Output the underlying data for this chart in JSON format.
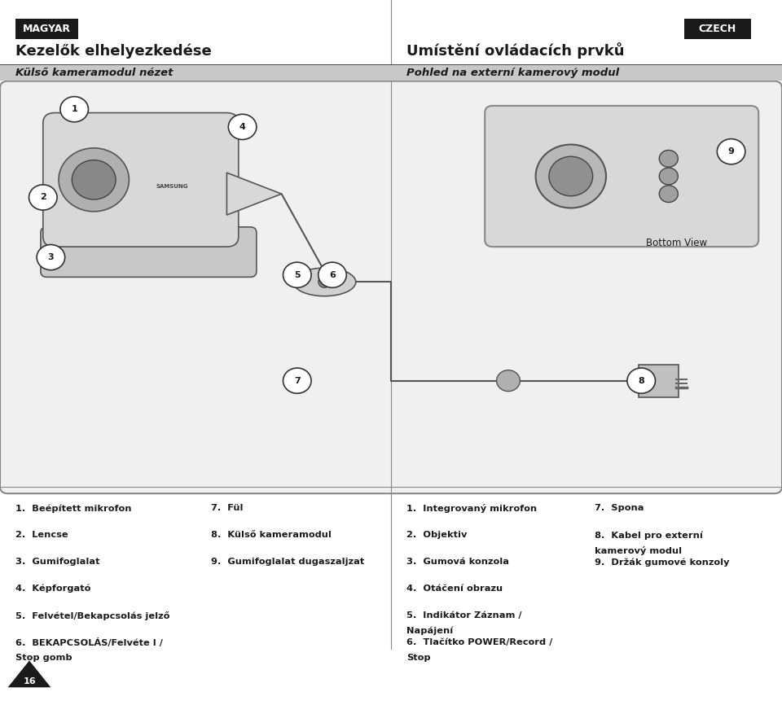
{
  "bg_color": "#ffffff",
  "title_left": "Kezelők elhelyezkedése",
  "title_right": "Umístění ovládacích prvků",
  "badge_left": "MAGYAR",
  "badge_right": "CZECH",
  "subtitle_left": "Külső kameramodul nézet",
  "subtitle_right": "Pohled na externí kamerový modul",
  "bottom_view_label": "Bottom View",
  "page_number": "16",
  "left_col1_items": [
    "1.  Beépített mikrofon",
    "2.  Lencse",
    "3.  Gumifoglalat",
    "4.  Képforgató",
    "5.  Felvétel/Bekapcsolás jelző",
    "6.  BEKAPCSOLÁS/Felvéte l /\n     Stop gomb"
  ],
  "left_col2_items": [
    "7.  Fül",
    "8.  Külső kameramodul",
    "9.  Gumifoglalat dugaszaljzat"
  ],
  "right_col1_items": [
    "1.  Integrovaný mikrofon",
    "2.  Objektiv",
    "3.  Gumová konzola",
    "4.  Otáčení obrazu",
    "5.  Indikátor Záznam /\n     Napájení",
    "6.  Tlačítko POWER/Record /\n     Stop"
  ],
  "right_col2_items": [
    "7.  Spona",
    "8.  Kabel pro externí\n     kamerový modul",
    "9.  Držák gumové konzoly"
  ]
}
